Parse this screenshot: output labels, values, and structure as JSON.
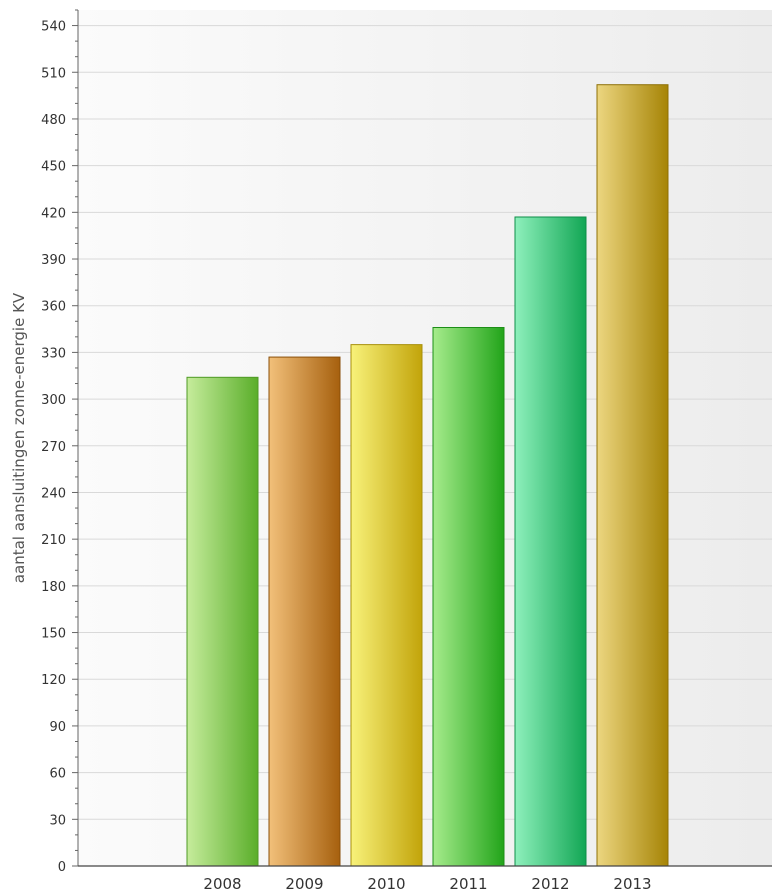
{
  "chart_data": {
    "type": "bar",
    "title": "",
    "xlabel": "",
    "ylabel": "aantal aansluitingen zonne-energie KV",
    "categories": [
      "2008",
      "2009",
      "2010",
      "2011",
      "2012",
      "2013"
    ],
    "values": [
      314,
      327,
      335,
      346,
      417,
      502
    ],
    "ylim": [
      0,
      550
    ],
    "yticks": [
      0,
      30,
      60,
      90,
      120,
      150,
      180,
      210,
      240,
      270,
      300,
      330,
      360,
      390,
      420,
      450,
      480,
      510,
      540
    ],
    "grid": true,
    "legend": "none",
    "colors": [
      [
        "#c6ec9c",
        "#5aae2a",
        "#4f9a25"
      ],
      [
        "#f2c07a",
        "#a6600e",
        "#8a4f0a"
      ],
      [
        "#f8f27a",
        "#c2a40a",
        "#a8900a"
      ],
      [
        "#a6ec8c",
        "#22a41a",
        "#1c8e16"
      ],
      [
        "#8ef0bc",
        "#12a654",
        "#0e8e48"
      ],
      [
        "#ecd680",
        "#a68406",
        "#8e7006"
      ]
    ]
  }
}
